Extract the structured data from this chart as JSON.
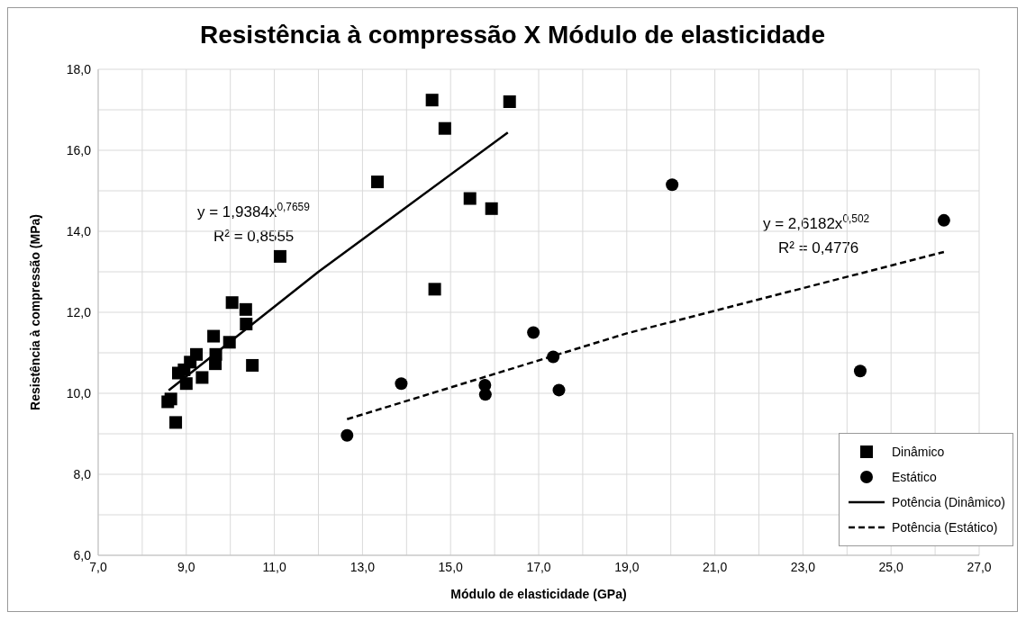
{
  "chart_data": {
    "type": "scatter",
    "title": "Resistência à compressão X Módulo de elasticidade",
    "xlabel": "Módulo de elasticidade (GPa)",
    "ylabel": "Resistência à compressão (MPa)",
    "xlim": [
      7,
      27
    ],
    "ylim": [
      6,
      18
    ],
    "xticks": [
      {
        "value": 7,
        "label": "7,0"
      },
      {
        "value": 8,
        "label": null
      },
      {
        "value": 9,
        "label": "9,0"
      },
      {
        "value": 10,
        "label": null
      },
      {
        "value": 11,
        "label": "11,0"
      },
      {
        "value": 12,
        "label": null
      },
      {
        "value": 13,
        "label": "13,0"
      },
      {
        "value": 14,
        "label": null
      },
      {
        "value": 15,
        "label": "15,0"
      },
      {
        "value": 16,
        "label": null
      },
      {
        "value": 17,
        "label": "17,0"
      },
      {
        "value": 18,
        "label": null
      },
      {
        "value": 19,
        "label": "19,0"
      },
      {
        "value": 20,
        "label": null
      },
      {
        "value": 21,
        "label": "21,0"
      },
      {
        "value": 22,
        "label": null
      },
      {
        "value": 23,
        "label": "23,0"
      },
      {
        "value": 24,
        "label": null
      },
      {
        "value": 25,
        "label": "25,0"
      },
      {
        "value": 26,
        "label": null
      },
      {
        "value": 27,
        "label": "27,0"
      }
    ],
    "yticks": [
      {
        "value": 6,
        "label": "6,0"
      },
      {
        "value": 7,
        "label": null
      },
      {
        "value": 8,
        "label": "8,0"
      },
      {
        "value": 9,
        "label": null
      },
      {
        "value": 10,
        "label": "10,0"
      },
      {
        "value": 11,
        "label": null
      },
      {
        "value": 12,
        "label": "12,0"
      },
      {
        "value": 13,
        "label": null
      },
      {
        "value": 14,
        "label": "14,0"
      },
      {
        "value": 15,
        "label": null
      },
      {
        "value": 16,
        "label": "16,0"
      },
      {
        "value": 17,
        "label": null
      },
      {
        "value": 18,
        "label": "18,0"
      }
    ],
    "grid": true,
    "legend": "bottom right",
    "series": [
      {
        "name": "Dinâmico",
        "marker": "square",
        "color": "#000000",
        "x": [
          14.58,
          14.87,
          13.34,
          15.44,
          15.93,
          16.34,
          11.13,
          14.64,
          10.04,
          10.35,
          10.36,
          9.62,
          9.98,
          9.67,
          9.66,
          10.5,
          9.23,
          9.09,
          9.36,
          8.95,
          8.82,
          9.0,
          8.65,
          8.58,
          8.76
        ],
        "values": [
          17.24,
          16.54,
          15.22,
          14.81,
          14.56,
          17.2,
          13.38,
          12.57,
          12.24,
          12.07,
          11.71,
          11.41,
          11.26,
          10.96,
          10.73,
          10.69,
          10.96,
          10.77,
          10.39,
          10.58,
          10.5,
          10.24,
          9.86,
          9.79,
          9.28
        ]
      },
      {
        "name": "Estático",
        "marker": "circle",
        "color": "#000000",
        "x": [
          12.65,
          13.88,
          15.78,
          15.79,
          16.88,
          17.33,
          17.46,
          20.03,
          24.3,
          26.2
        ],
        "values": [
          8.96,
          10.24,
          10.2,
          9.97,
          11.5,
          10.9,
          10.08,
          15.15,
          10.55,
          14.27
        ]
      },
      {
        "name": "Potência (Dinâmico)",
        "type": "line",
        "marker": "none",
        "line_style": "solid",
        "color": "#000000",
        "x": [
          8.6,
          12,
          16.3
        ],
        "values": [
          10.07,
          13.0,
          16.44
        ]
      },
      {
        "name": "Potência (Estático)",
        "type": "line",
        "marker": "none",
        "line_style": "dashed",
        "color": "#000000",
        "x": [
          12.65,
          19,
          26.2
        ],
        "values": [
          9.36,
          11.48,
          13.49
        ]
      }
    ],
    "annotations": [
      "y = 1,9384x$^{0,7659}$",
      "R² = 0,8555",
      "y = 2,6182x$^{0,502}$",
      "R² = 0,4776"
    ]
  }
}
